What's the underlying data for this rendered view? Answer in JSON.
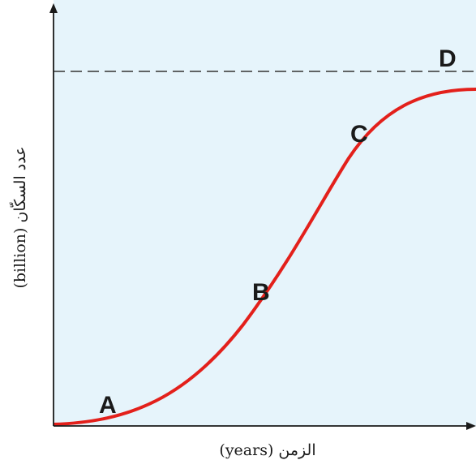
{
  "diagram": {
    "x_axis_label": "الزمن (years)",
    "y_axis_label": "عدد السكّان (billion)",
    "points": [
      {
        "id": "A",
        "label": "A"
      },
      {
        "id": "B",
        "label": "B"
      },
      {
        "id": "C",
        "label": "C"
      },
      {
        "id": "D",
        "label": "D"
      }
    ],
    "colors": {
      "background": "#e6f4fb",
      "curve": "#e3201b",
      "axes": "#1a1a1a",
      "capacity_line": "#333333"
    },
    "curve_shape": "logistic S-curve",
    "capacity_line_style": "dashed horizontal"
  }
}
